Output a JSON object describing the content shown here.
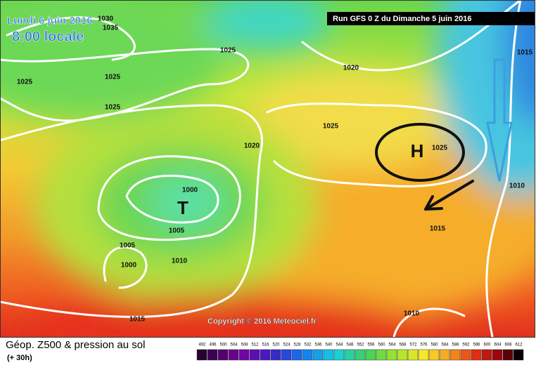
{
  "header": {
    "date": "Lundi 6 juin 2016",
    "time": "8:00 locale",
    "run": "Run GFS 0 Z du Dimanche 5 juin 2016"
  },
  "map": {
    "pressure_labels": [
      "1030",
      "1035",
      "1025",
      "1025",
      "1025",
      "1025",
      "1020",
      "1015",
      "1025",
      "1020",
      "1025",
      "1000",
      "1010",
      "1005",
      "1015",
      "1005",
      "1000",
      "1010",
      "1015",
      "1010"
    ],
    "systems": [
      "T",
      "H"
    ],
    "copyright": "Copyright © 2016 Meteociel.fr"
  },
  "legend": {
    "title": "Géop. Z500 & pression au sol",
    "lead": "(+ 30h)",
    "scale": [
      492,
      496,
      500,
      504,
      508,
      512,
      516,
      520,
      524,
      528,
      532,
      536,
      540,
      544,
      548,
      552,
      556,
      560,
      564,
      568,
      572,
      576,
      580,
      584,
      588,
      592,
      596,
      600,
      604,
      608,
      612
    ]
  }
}
